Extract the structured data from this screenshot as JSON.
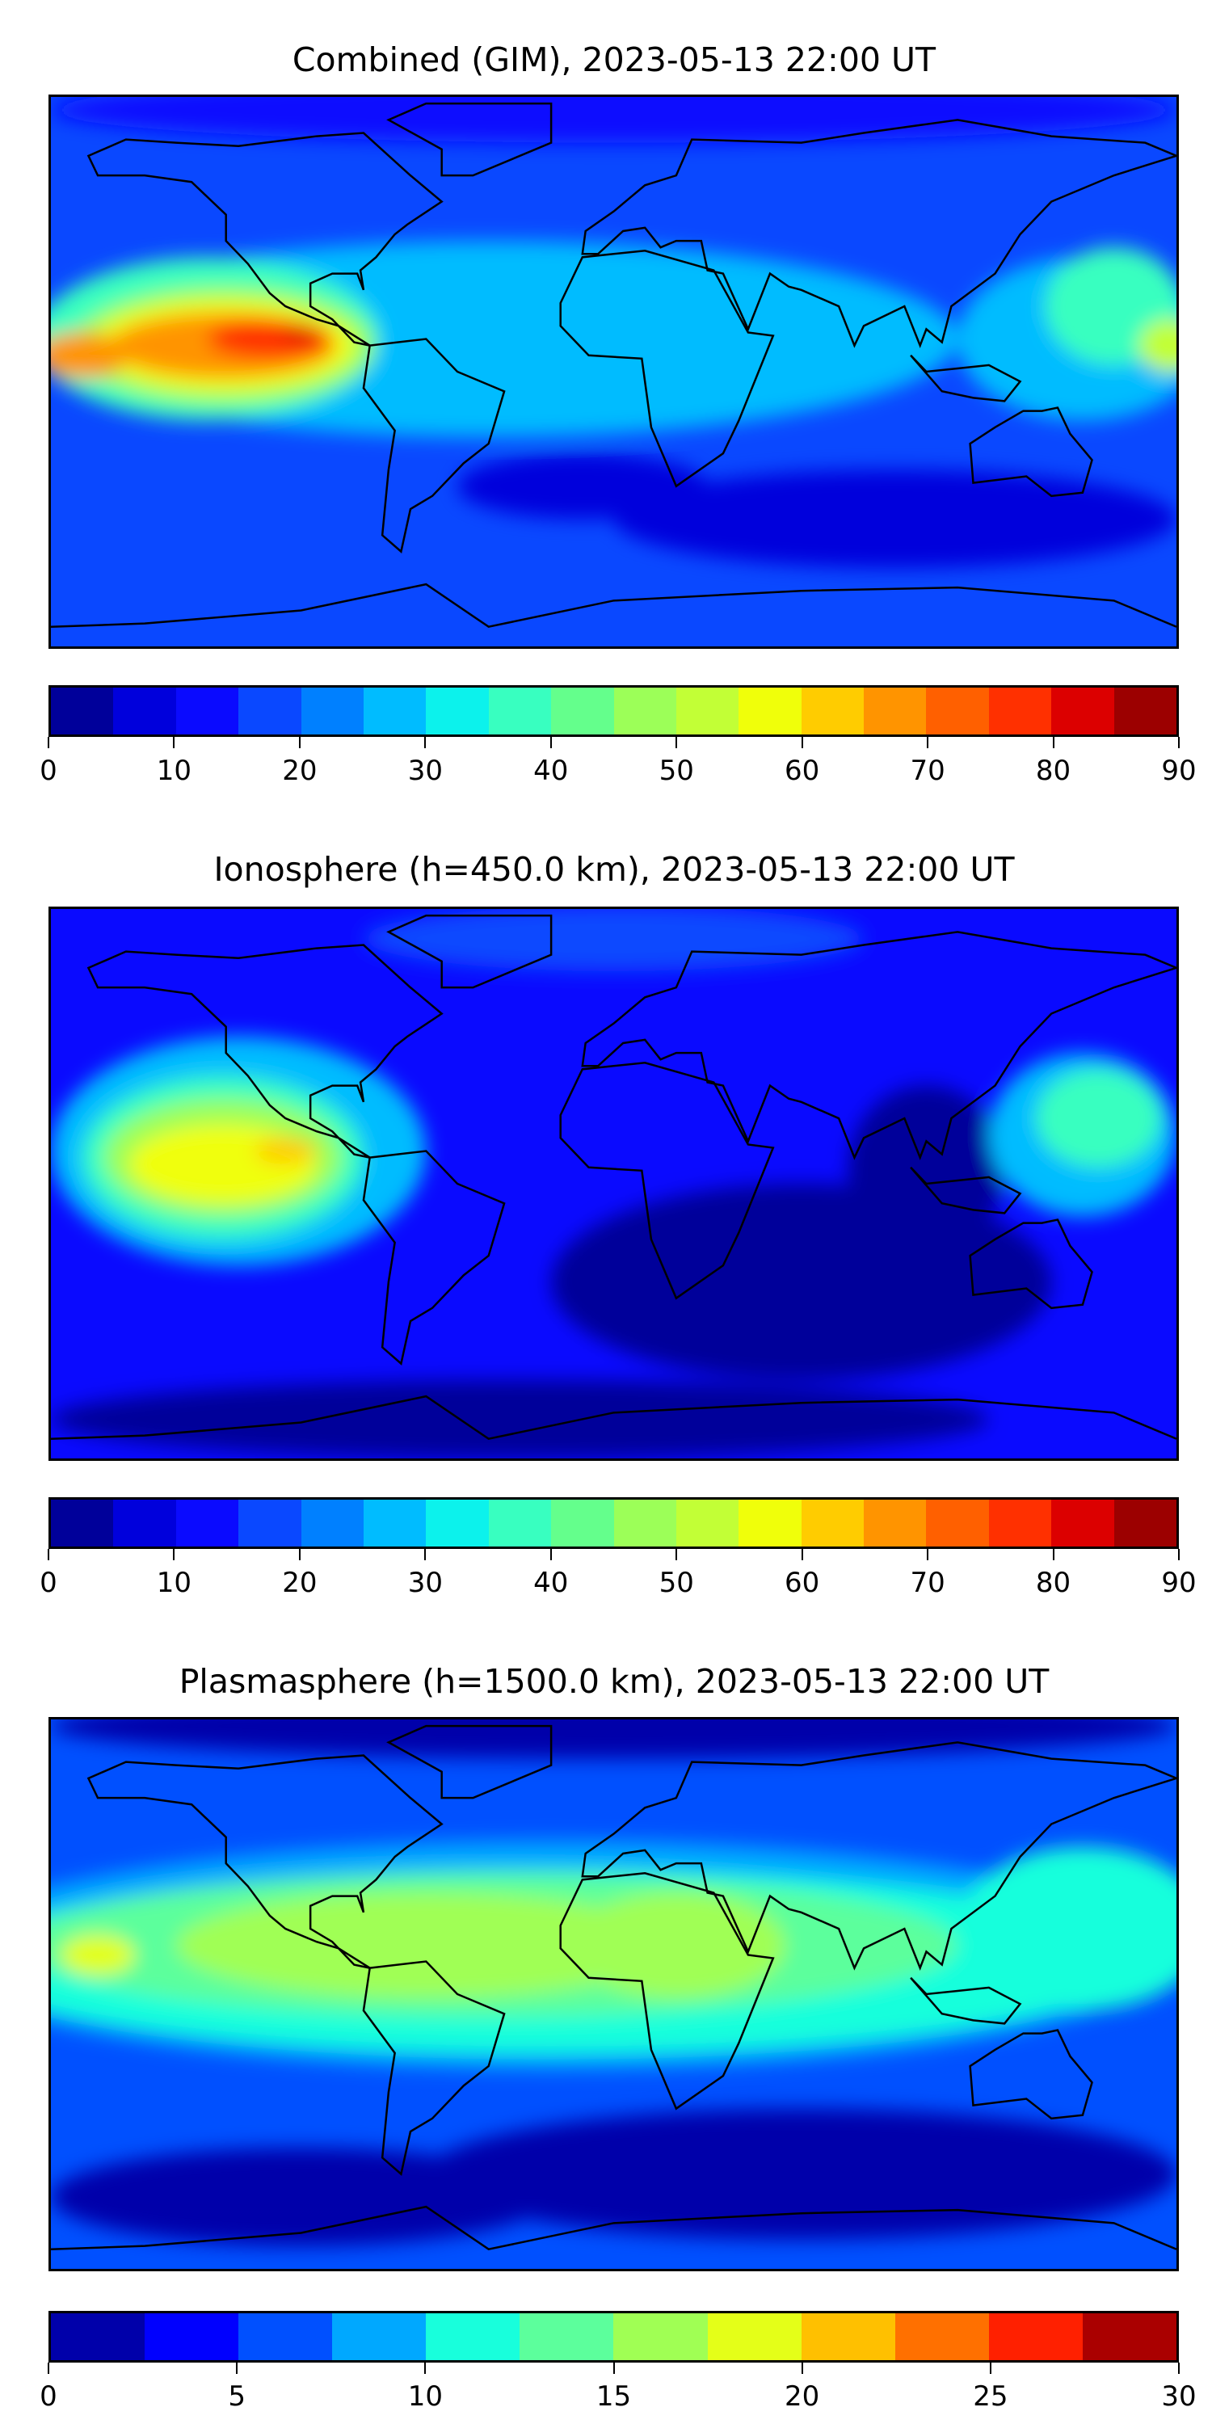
{
  "chart_data": [
    {
      "type": "heatmap",
      "title": "Combined (GIM), 2023-05-13 22:00 UT",
      "colorbar": {
        "min": 0,
        "max": 90,
        "step": 5,
        "ticks": [
          0,
          10,
          20,
          30,
          40,
          50,
          60,
          70,
          80,
          90
        ],
        "colors": [
          "#00009a",
          "#0000dc",
          "#0a0aff",
          "#0a48ff",
          "#0080ff",
          "#00bcff",
          "#0cf2ec",
          "#38ffc0",
          "#64ff8c",
          "#9cff58",
          "#c2ff36",
          "#f0ff0a",
          "#ffcc00",
          "#ff9400",
          "#ff6000",
          "#ff3000",
          "#dc0000",
          "#9c0000"
        ]
      },
      "background_value": 17,
      "features": [
        {
          "value": 12,
          "lon": 0,
          "lat": 80,
          "rlon": 180,
          "rlat": 10
        },
        {
          "value": 8,
          "lon": 90,
          "lat": -45,
          "rlon": 90,
          "rlat": 15
        },
        {
          "value": 8,
          "lon": -10,
          "lat": -35,
          "rlon": 40,
          "rlat": 10
        },
        {
          "value": 27,
          "lon": -40,
          "lat": 10,
          "rlon": 150,
          "rlat": 30
        },
        {
          "value": 27,
          "lon": 150,
          "lat": 10,
          "rlon": 40,
          "rlat": 25
        },
        {
          "value": 37,
          "lon": -130,
          "lat": 10,
          "rlon": 55,
          "rlat": 25
        },
        {
          "value": 37,
          "lon": 160,
          "lat": 20,
          "rlon": 22,
          "rlat": 18
        },
        {
          "value": 47,
          "lon": -125,
          "lat": 8,
          "rlon": 48,
          "rlat": 18
        },
        {
          "value": 52,
          "lon": 178,
          "lat": 8,
          "rlon": 10,
          "rlat": 8
        },
        {
          "value": 57,
          "lon": -125,
          "lat": 8,
          "rlon": 42,
          "rlat": 14
        },
        {
          "value": 67,
          "lon": -125,
          "lat": 8,
          "rlon": 36,
          "rlat": 10
        },
        {
          "value": 67,
          "lon": -170,
          "lat": 5,
          "rlon": 15,
          "rlat": 7
        },
        {
          "value": 77,
          "lon": -110,
          "lat": 10,
          "rlon": 20,
          "rlat": 6
        },
        {
          "value": 82,
          "lon": -100,
          "lat": 12,
          "rlon": 6,
          "rlat": 2.5
        }
      ]
    },
    {
      "type": "heatmap",
      "title": "Ionosphere  (h=450.0 km), 2023-05-13 22:00 UT",
      "colorbar": {
        "min": 0,
        "max": 90,
        "step": 5,
        "ticks": [
          0,
          10,
          20,
          30,
          40,
          50,
          60,
          70,
          80,
          90
        ],
        "colors": [
          "#00009a",
          "#0000dc",
          "#0a0aff",
          "#0a48ff",
          "#0080ff",
          "#00bcff",
          "#0cf2ec",
          "#38ffc0",
          "#64ff8c",
          "#9cff58",
          "#c2ff36",
          "#f0ff0a",
          "#ffcc00",
          "#ff9400",
          "#ff6000",
          "#ff3000",
          "#dc0000",
          "#9c0000"
        ]
      },
      "background_value": 12,
      "features": [
        {
          "value": 3,
          "lon": 60,
          "lat": -30,
          "rlon": 80,
          "rlat": 30
        },
        {
          "value": 3,
          "lon": 100,
          "lat": 5,
          "rlon": 25,
          "rlat": 25
        },
        {
          "value": 3,
          "lon": -30,
          "lat": -72,
          "rlon": 150,
          "rlat": 12
        },
        {
          "value": 18,
          "lon": 0,
          "lat": 75,
          "rlon": 80,
          "rlat": 10
        },
        {
          "value": 25,
          "lon": -120,
          "lat": 10,
          "rlon": 60,
          "rlat": 35
        },
        {
          "value": 25,
          "lon": 150,
          "lat": 15,
          "rlon": 30,
          "rlat": 25
        },
        {
          "value": 35,
          "lon": -125,
          "lat": 8,
          "rlon": 45,
          "rlat": 25
        },
        {
          "value": 35,
          "lon": 155,
          "lat": 20,
          "rlon": 20,
          "rlat": 15
        },
        {
          "value": 45,
          "lon": -125,
          "lat": 8,
          "rlon": 38,
          "rlat": 18
        },
        {
          "value": 55,
          "lon": -125,
          "lat": 6,
          "rlon": 30,
          "rlat": 12
        },
        {
          "value": 62,
          "lon": -105,
          "lat": 10,
          "rlon": 10,
          "rlat": 4
        }
      ]
    },
    {
      "type": "heatmap",
      "title": "Plasmasphere (h=1500.0 km), 2023-05-13 22:00 UT",
      "colorbar": {
        "min": 0,
        "max": 30,
        "step": 2.5,
        "ticks": [
          0,
          5,
          10,
          15,
          20,
          25,
          30
        ],
        "colors": [
          "#0000aa",
          "#0000ff",
          "#0050ff",
          "#00a8ff",
          "#18ffdc",
          "#5cff9c",
          "#a0ff54",
          "#e4ff18",
          "#ffc000",
          "#ff7000",
          "#ff2000",
          "#aa0000"
        ]
      },
      "background_value": 6,
      "features": [
        {
          "value": 2,
          "lon": 0,
          "lat": 82,
          "rlon": 180,
          "rlat": 10
        },
        {
          "value": 2,
          "lon": 60,
          "lat": -55,
          "rlon": 120,
          "rlat": 20
        },
        {
          "value": 2,
          "lon": -100,
          "lat": -62,
          "rlon": 80,
          "rlat": 15
        },
        {
          "value": 8,
          "lon": -20,
          "lat": 12,
          "rlon": 200,
          "rlat": 35
        },
        {
          "value": 11,
          "lon": -20,
          "lat": 10,
          "rlon": 190,
          "rlat": 28
        },
        {
          "value": 11,
          "lon": 150,
          "lat": 20,
          "rlon": 40,
          "rlat": 25
        },
        {
          "value": 14,
          "lon": -40,
          "lat": 15,
          "rlon": 150,
          "rlat": 22
        },
        {
          "value": 16,
          "lon": -60,
          "lat": 15,
          "rlon": 80,
          "rlat": 16
        },
        {
          "value": 16,
          "lon": 20,
          "lat": 15,
          "rlon": 35,
          "rlat": 16
        },
        {
          "value": 18,
          "lon": -165,
          "lat": 12,
          "rlon": 12,
          "rlat": 6
        }
      ]
    }
  ]
}
